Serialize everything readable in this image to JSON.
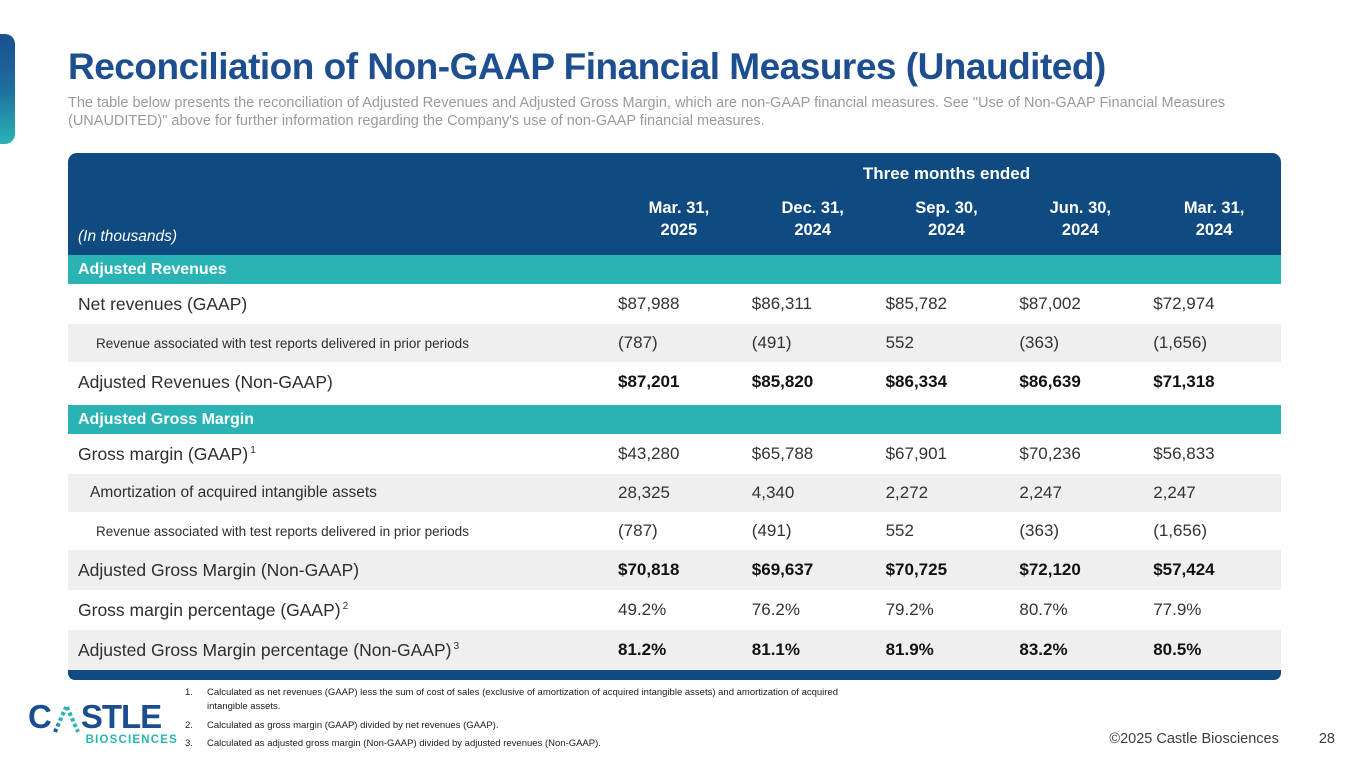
{
  "page": {
    "title": "Reconciliation of Non-GAAP Financial Measures (Unaudited)",
    "subtitle": "The table below presents the reconciliation of Adjusted Revenues and Adjusted Gross Margin, which are non-GAAP financial measures. See \"Use of Non-GAAP Financial Measures (UNAUDITED)\" above for further information regarding the Company's use of non-GAAP financial measures.",
    "copyright": "©2025 Castle Biosciences",
    "page_number": "28"
  },
  "logo": {
    "word_start": "C",
    "word_end": "STLE",
    "subtext": "BIOSCIENCES"
  },
  "table": {
    "period_header": "Three months ended",
    "units_label": "(In thousands)",
    "columns": [
      {
        "line1": "Mar. 31,",
        "line2": "2025"
      },
      {
        "line1": "Dec. 31,",
        "line2": "2024"
      },
      {
        "line1": "Sep. 30,",
        "line2": "2024"
      },
      {
        "line1": "Jun. 30,",
        "line2": "2024"
      },
      {
        "line1": "Mar. 31,",
        "line2": "2024"
      }
    ],
    "sections": [
      {
        "header": "Adjusted Revenues",
        "rows": [
          {
            "label": "Net revenues (GAAP)",
            "size": "main",
            "bold_values": false,
            "values": [
              "$87,988",
              "$86,311",
              "$85,782",
              "$87,002",
              "$72,974"
            ]
          },
          {
            "label": "Revenue associated with test reports delivered in prior periods",
            "size": "small",
            "bold_values": false,
            "values": [
              "(787)",
              "(491)",
              "552",
              "(363)",
              "(1,656)"
            ]
          },
          {
            "label": "Adjusted Revenues (Non-GAAP)",
            "size": "main",
            "bold_values": true,
            "values": [
              "$87,201",
              "$85,820",
              "$86,334",
              "$86,639",
              "$71,318"
            ]
          }
        ]
      },
      {
        "header": "Adjusted Gross Margin",
        "rows": [
          {
            "label": "Gross margin (GAAP)",
            "sup": "1",
            "size": "main",
            "bold_values": false,
            "values": [
              "$43,280",
              "$65,788",
              "$67,901",
              "$70,236",
              "$56,833"
            ]
          },
          {
            "label": "Amortization of acquired intangible assets",
            "size": "mid",
            "bold_values": false,
            "values": [
              "28,325",
              "4,340",
              "2,272",
              "2,247",
              "2,247"
            ]
          },
          {
            "label": "Revenue associated with test reports delivered in prior periods",
            "size": "small",
            "bold_values": false,
            "values": [
              "(787)",
              "(491)",
              "552",
              "(363)",
              "(1,656)"
            ]
          },
          {
            "label": "Adjusted Gross Margin (Non-GAAP)",
            "size": "main",
            "bold_values": true,
            "values": [
              "$70,818",
              "$69,637",
              "$70,725",
              "$72,120",
              "$57,424"
            ]
          },
          {
            "label": "Gross margin percentage (GAAP)",
            "sup": "2",
            "size": "main",
            "bold_values": false,
            "values": [
              "49.2%",
              "76.2%",
              "79.2%",
              "80.7%",
              "77.9%"
            ]
          },
          {
            "label": "Adjusted Gross Margin percentage (Non-GAAP)",
            "sup": "3",
            "size": "main",
            "bold_values": true,
            "values": [
              "81.2%",
              "81.1%",
              "81.9%",
              "83.2%",
              "80.5%"
            ]
          }
        ]
      }
    ]
  },
  "footnotes": [
    {
      "num": "1.",
      "text": "Calculated as net revenues (GAAP) less the sum of cost of sales (exclusive of amortization of acquired intangible assets) and amortization of acquired intangible assets."
    },
    {
      "num": "2.",
      "text": "Calculated as gross margin (GAAP) divided by net revenues (GAAP)."
    },
    {
      "num": "3.",
      "text": "Calculated as adjusted gross margin (Non-GAAP) divided by adjusted revenues (Non-GAAP)."
    }
  ],
  "colors": {
    "header_blue": "#0f4a81",
    "teal": "#2ab3b5",
    "title_blue": "#1d4e90",
    "row_alt": "#efeff0",
    "subtitle_gray": "#9a9a9a"
  }
}
